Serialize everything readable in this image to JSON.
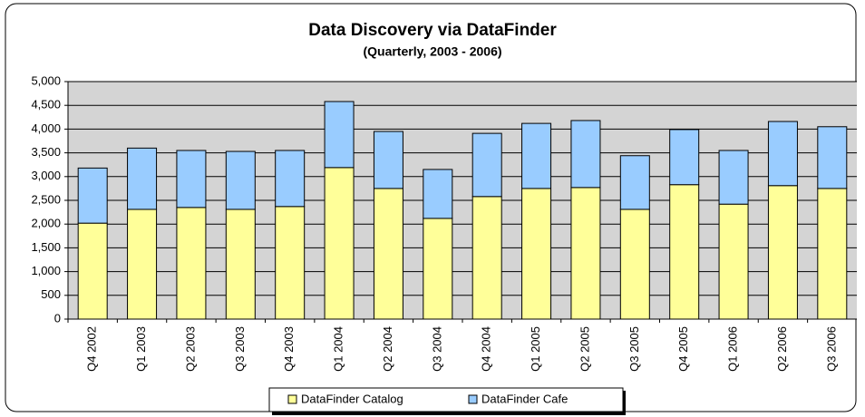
{
  "chart_data": {
    "type": "stacked_bar",
    "title": "Data Discovery via DataFinder",
    "subtitle": "(Quarterly, 2003 - 2006)",
    "categories": [
      "Q4 2002",
      "Q1 2003",
      "Q2 2003",
      "Q3 2003",
      "Q4 2003",
      "Q1 2004",
      "Q2 2004",
      "Q3 2004",
      "Q4 2004",
      "Q1 2005",
      "Q2 2005",
      "Q3 2005",
      "Q4 2005",
      "Q1 2006",
      "Q2 2006",
      "Q3 2006"
    ],
    "series": [
      {
        "name": "DataFinder Catalog",
        "color": "#ffff99",
        "values": [
          2020,
          2310,
          2350,
          2310,
          2370,
          3190,
          2750,
          2120,
          2580,
          2750,
          2770,
          2310,
          2830,
          2420,
          2810,
          2750
        ]
      },
      {
        "name": "DataFinder Cafe",
        "color": "#99ccff",
        "values": [
          1160,
          1290,
          1200,
          1220,
          1180,
          1390,
          1200,
          1030,
          1330,
          1370,
          1410,
          1130,
          1160,
          1130,
          1350,
          1300
        ]
      }
    ],
    "ylim": [
      0,
      5000
    ],
    "yticks": [
      0,
      500,
      {
        "value": 1000,
        "label": "1,000"
      },
      {
        "value": 1500,
        "label": "1,500"
      },
      {
        "value": 2000,
        "label": "2,000"
      },
      {
        "value": 2500,
        "label": "2,500"
      },
      {
        "value": 3000,
        "label": "3,000"
      },
      {
        "value": 3500,
        "label": "3,500"
      },
      {
        "value": 4000,
        "label": "4,000"
      },
      {
        "value": 4500,
        "label": "4,500"
      },
      {
        "value": 5000,
        "label": "5,000"
      }
    ],
    "grid": true,
    "legend": "bottom"
  }
}
